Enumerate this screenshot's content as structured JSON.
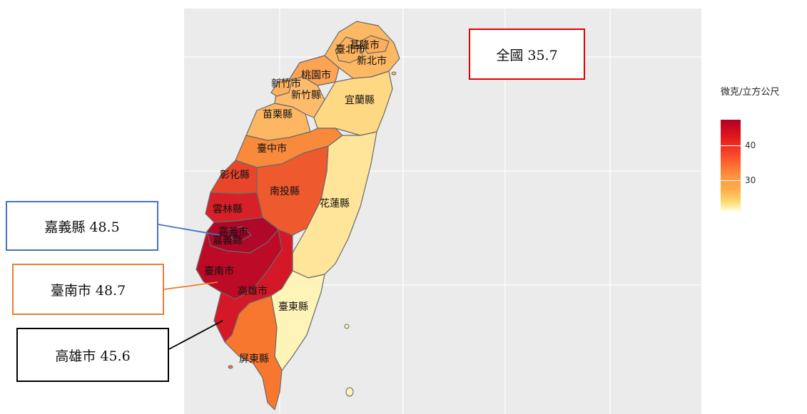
{
  "map": {
    "regions": [
      {
        "name": "基隆市",
        "value": null,
        "color": "#fdae5b"
      },
      {
        "name": "臺北市",
        "value": null,
        "color": "#fdb25f"
      },
      {
        "name": "新北市",
        "value": null,
        "color": "#fdb863"
      },
      {
        "name": "桃園市",
        "value": null,
        "color": "#fda354"
      },
      {
        "name": "新竹市",
        "value": null,
        "color": "#fdb060"
      },
      {
        "name": "新竹縣",
        "value": null,
        "color": "#fdbc6c"
      },
      {
        "name": "宜蘭縣",
        "value": null,
        "color": "#fed883"
      },
      {
        "name": "苗栗縣",
        "value": null,
        "color": "#fdb763"
      },
      {
        "name": "臺中市",
        "value": null,
        "color": "#f98a3c"
      },
      {
        "name": "彰化縣",
        "value": null,
        "color": "#e8452a"
      },
      {
        "name": "南投縣",
        "value": null,
        "color": "#ee5a2e"
      },
      {
        "name": "花蓮縣",
        "value": null,
        "color": "#fee59a"
      },
      {
        "name": "雲林縣",
        "value": null,
        "color": "#d72028"
      },
      {
        "name": "嘉義市",
        "value": null,
        "color": "#a8002a"
      },
      {
        "name": "嘉義縣",
        "value": 48.5,
        "color": "#b00828"
      },
      {
        "name": "臺南市",
        "value": 48.7,
        "color": "#bd0a26"
      },
      {
        "name": "高雄市",
        "value": 45.6,
        "color": "#d51828"
      },
      {
        "name": "臺東縣",
        "value": null,
        "color": "#fff4b8"
      },
      {
        "name": "屏東縣",
        "value": null,
        "color": "#f7772f"
      }
    ]
  },
  "national": {
    "label": "全國 35.7",
    "border_color": "#e00000"
  },
  "callouts": {
    "chiayi": {
      "label": "嘉義縣 48.5",
      "border_color": "#4472c4"
    },
    "tainan": {
      "label": "臺南市 48.7",
      "border_color": "#ed7d31"
    },
    "kaohsiung": {
      "label": "高雄市 45.6",
      "border_color": "#000000"
    }
  },
  "legend": {
    "title": "微克/立方公尺",
    "ticks": [
      "40",
      "30"
    ],
    "low_color": "#ffffcc",
    "high_color": "#b10026"
  }
}
